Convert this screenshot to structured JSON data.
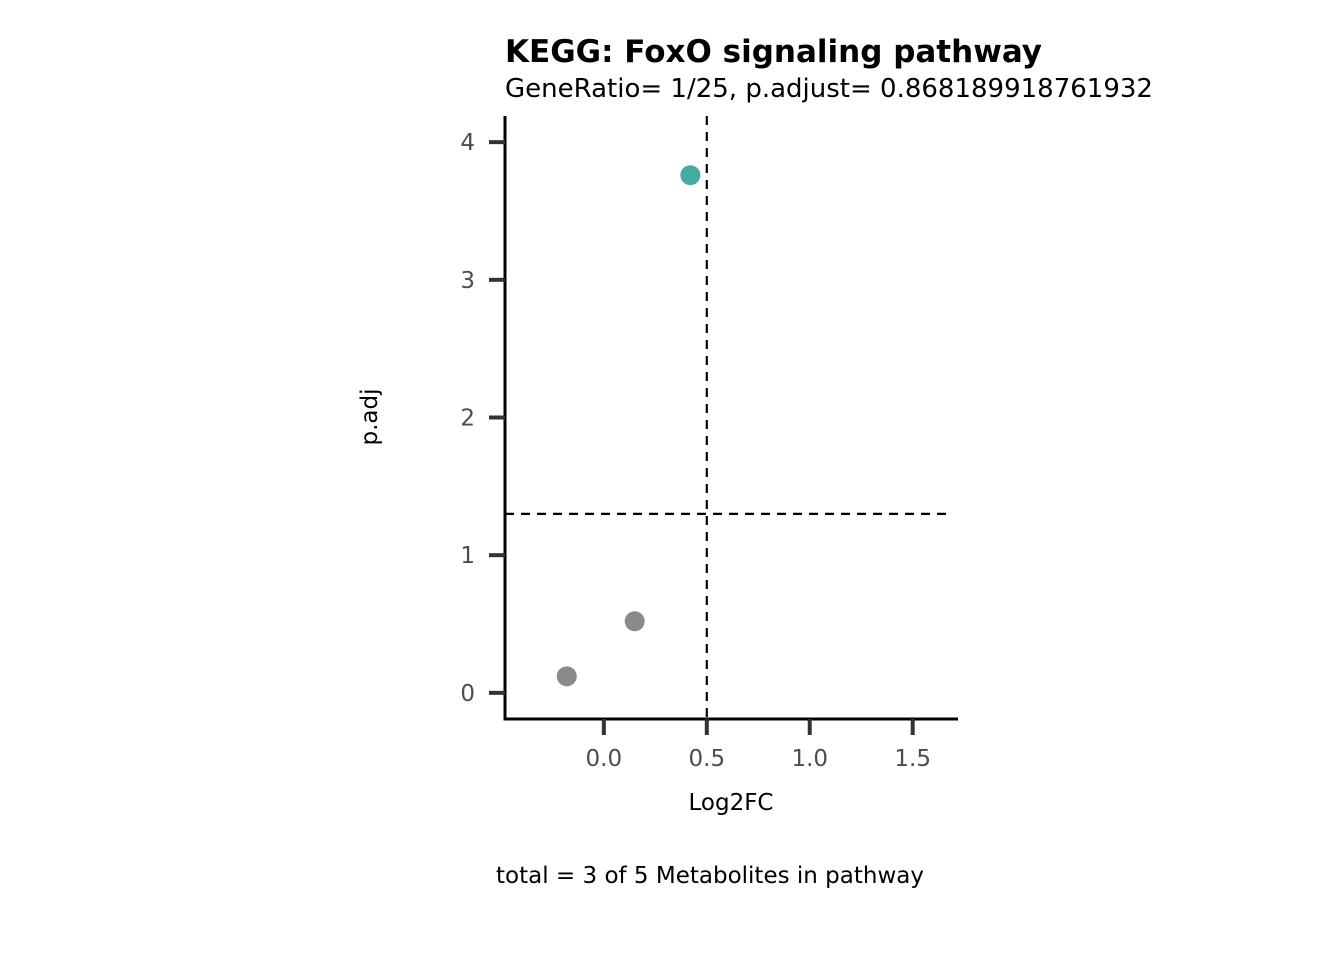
{
  "chart_data": {
    "type": "scatter",
    "title": "KEGG: FoxO signaling pathway",
    "subtitle": "GeneRatio= 1/25, p.adjust= 0.868189918761932",
    "xlabel": "Log2FC",
    "ylabel": "p.adj",
    "caption": "total = 3 of 5 Metabolites in pathway",
    "xlim": [
      -0.48,
      1.72
    ],
    "ylim": [
      -0.19,
      4.19
    ],
    "x_ticks": [
      0.0,
      0.5,
      1.0,
      1.5
    ],
    "x_tick_labels": [
      "0.0",
      "0.5",
      "1.0",
      "1.5"
    ],
    "y_ticks": [
      0,
      1,
      2,
      3,
      4
    ],
    "y_tick_labels": [
      "0",
      "1",
      "2",
      "3",
      "4"
    ],
    "grid": false,
    "reference_lines": {
      "vertical_x": 0.5,
      "horizontal_y": 1.3
    },
    "points": [
      {
        "x": 0.42,
        "y": 3.76,
        "group": "significant"
      },
      {
        "x": 0.15,
        "y": 0.52,
        "group": "not significant"
      },
      {
        "x": -0.18,
        "y": 0.12,
        "group": "not significant"
      }
    ],
    "colors": {
      "significant": "#45ab9e",
      "not significant": "#8a8a8a",
      "axis": "#000000",
      "tick": "#333333",
      "reference_line": "#000000"
    }
  }
}
